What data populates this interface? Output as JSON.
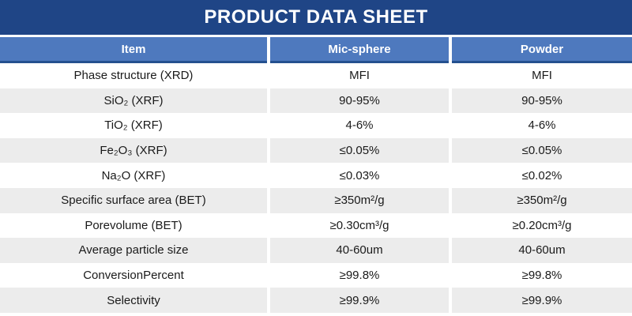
{
  "title": "PRODUCT DATA SHEET",
  "colors": {
    "title_bar_bg": "#1F4586",
    "header_bg": "#4E79BE",
    "header_border": "#24508F",
    "alt_row_bg": "#ECECEC",
    "header_text": "#FFFFFF",
    "body_text": "#1A1A1A"
  },
  "table": {
    "columns": [
      "Item",
      "Mic-sphere",
      "Powder"
    ],
    "rows": [
      {
        "item": "Phase structure (XRD)",
        "mic_sphere": "MFI",
        "powder": "MFI"
      },
      {
        "item": "SiO₂ (XRF)",
        "mic_sphere": "90-95%",
        "powder": "90-95%"
      },
      {
        "item": "TiO₂ (XRF)",
        "mic_sphere": "4-6%",
        "powder": "4-6%"
      },
      {
        "item": "Fe₂O₃ (XRF)",
        "mic_sphere": "≤0.05%",
        "powder": "≤0.05%"
      },
      {
        "item": "Na₂O (XRF)",
        "mic_sphere": "≤0.03%",
        "powder": "≤0.02%"
      },
      {
        "item": "Specific surface area (BET)",
        "mic_sphere": "≥350m²/g",
        "powder": "≥350m²/g"
      },
      {
        "item": "Porevolume (BET)",
        "mic_sphere": "≥0.30cm³/g",
        "powder": "≥0.20cm³/g"
      },
      {
        "item": "Average particle size",
        "mic_sphere": "40-60um",
        "powder": "40-60um"
      },
      {
        "item": "ConversionPercent",
        "mic_sphere": "≥99.8%",
        "powder": "≥99.8%"
      },
      {
        "item": "Selectivity",
        "mic_sphere": "≥99.9%",
        "powder": "≥99.9%"
      }
    ]
  }
}
